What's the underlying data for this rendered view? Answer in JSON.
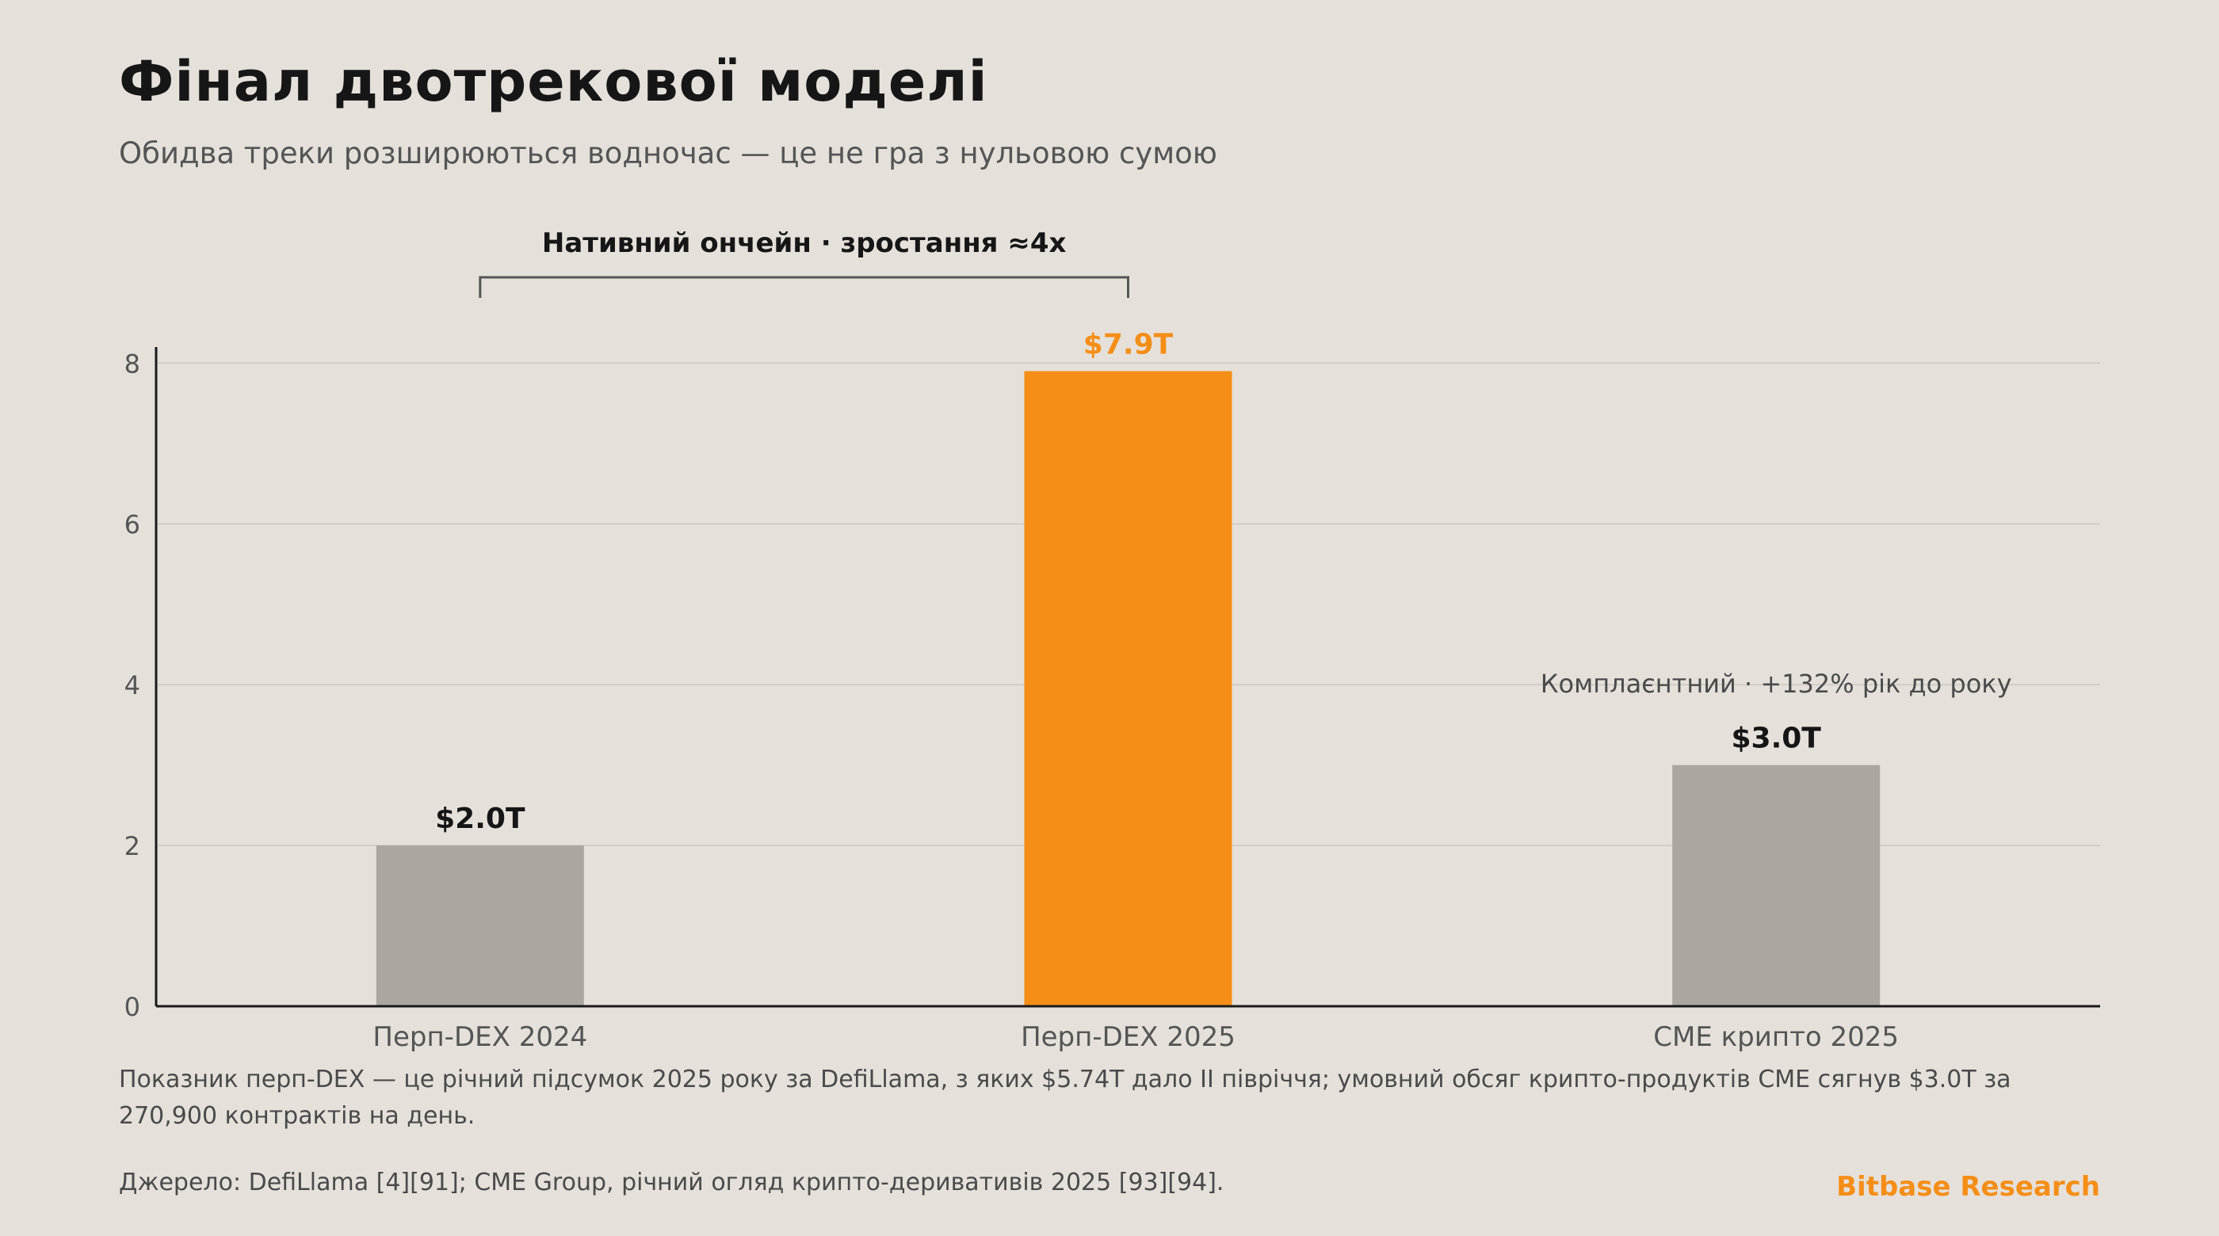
{
  "header": {
    "title": "Фінал двотрекової моделі",
    "subtitle": "Обидва треки розширюються водночас — це не гра з нульовою сумою"
  },
  "chart_data": {
    "type": "bar",
    "categories": [
      "Перп-DEX 2024",
      "Перп-DEX 2025",
      "CME крипто 2025"
    ],
    "values": [
      2.0,
      7.9,
      3.0
    ],
    "value_labels": [
      "$2.0T",
      "$7.9T",
      "$3.0T"
    ],
    "ylim": [
      0,
      8.2
    ],
    "yticks": [
      0,
      2,
      4,
      6,
      8
    ],
    "grid": true,
    "colors": {
      "default_bar": "#aba69f",
      "highlight_bar": "#f58e17",
      "highlight_label": "#f58e17",
      "label": "#161616",
      "axis": "#1a1a1a",
      "grid": "#d2cdc6",
      "tick_label": "#555555"
    },
    "highlight_index": 1,
    "annotations": {
      "bracket_label": "Нативний ончейн · зростання ≈4x",
      "bracket_from_index": 0,
      "bracket_to_index": 1,
      "cme_label": "Комплаєнтний · +132% рік до року"
    }
  },
  "footer": {
    "note": "Показник перп-DEX — це річний підсумок 2025 року за DefiLlama, з яких $5.74T дало II півріччя; умовний обсяг крипто-продуктів CME сягнув $3.0T за 270,900 контрактів на день.",
    "source": "Джерело: DefiLlama [4][91]; CME Group, річний огляд крипто-деривативів 2025 [93][94].",
    "brand": "Bitbase Research",
    "brand_color": "#f58e17"
  }
}
